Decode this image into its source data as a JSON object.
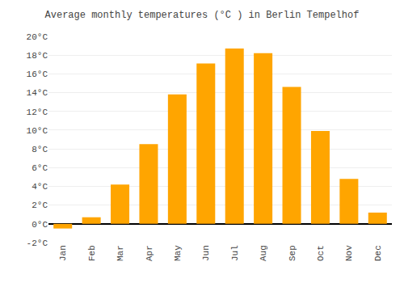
{
  "chart_data": {
    "type": "bar",
    "title": "Average monthly temperatures (°C ) in Berlin Tempelhof",
    "categories": [
      "Jan",
      "Feb",
      "Mar",
      "Apr",
      "May",
      "Jun",
      "Jul",
      "Aug",
      "Sep",
      "Oct",
      "Nov",
      "Dec"
    ],
    "values": [
      -0.5,
      0.7,
      4.2,
      8.5,
      13.8,
      17.1,
      18.7,
      18.2,
      14.6,
      9.9,
      4.8,
      1.2
    ],
    "color": "#FFA500",
    "ylim": [
      -2,
      20
    ],
    "yticks": [
      {
        "value": -2,
        "label": "-2°C"
      },
      {
        "value": 0,
        "label": "0°C"
      },
      {
        "value": 2,
        "label": "2°C"
      },
      {
        "value": 4,
        "label": "4°C"
      },
      {
        "value": 6,
        "label": "6°C"
      },
      {
        "value": 8,
        "label": "8°C"
      },
      {
        "value": 10,
        "label": "10°C"
      },
      {
        "value": 12,
        "label": "12°C"
      },
      {
        "value": 14,
        "label": "14°C"
      },
      {
        "value": 16,
        "label": "16°C"
      },
      {
        "value": 18,
        "label": "18°C"
      },
      {
        "value": 20,
        "label": "20°C"
      }
    ],
    "grid": true
  }
}
